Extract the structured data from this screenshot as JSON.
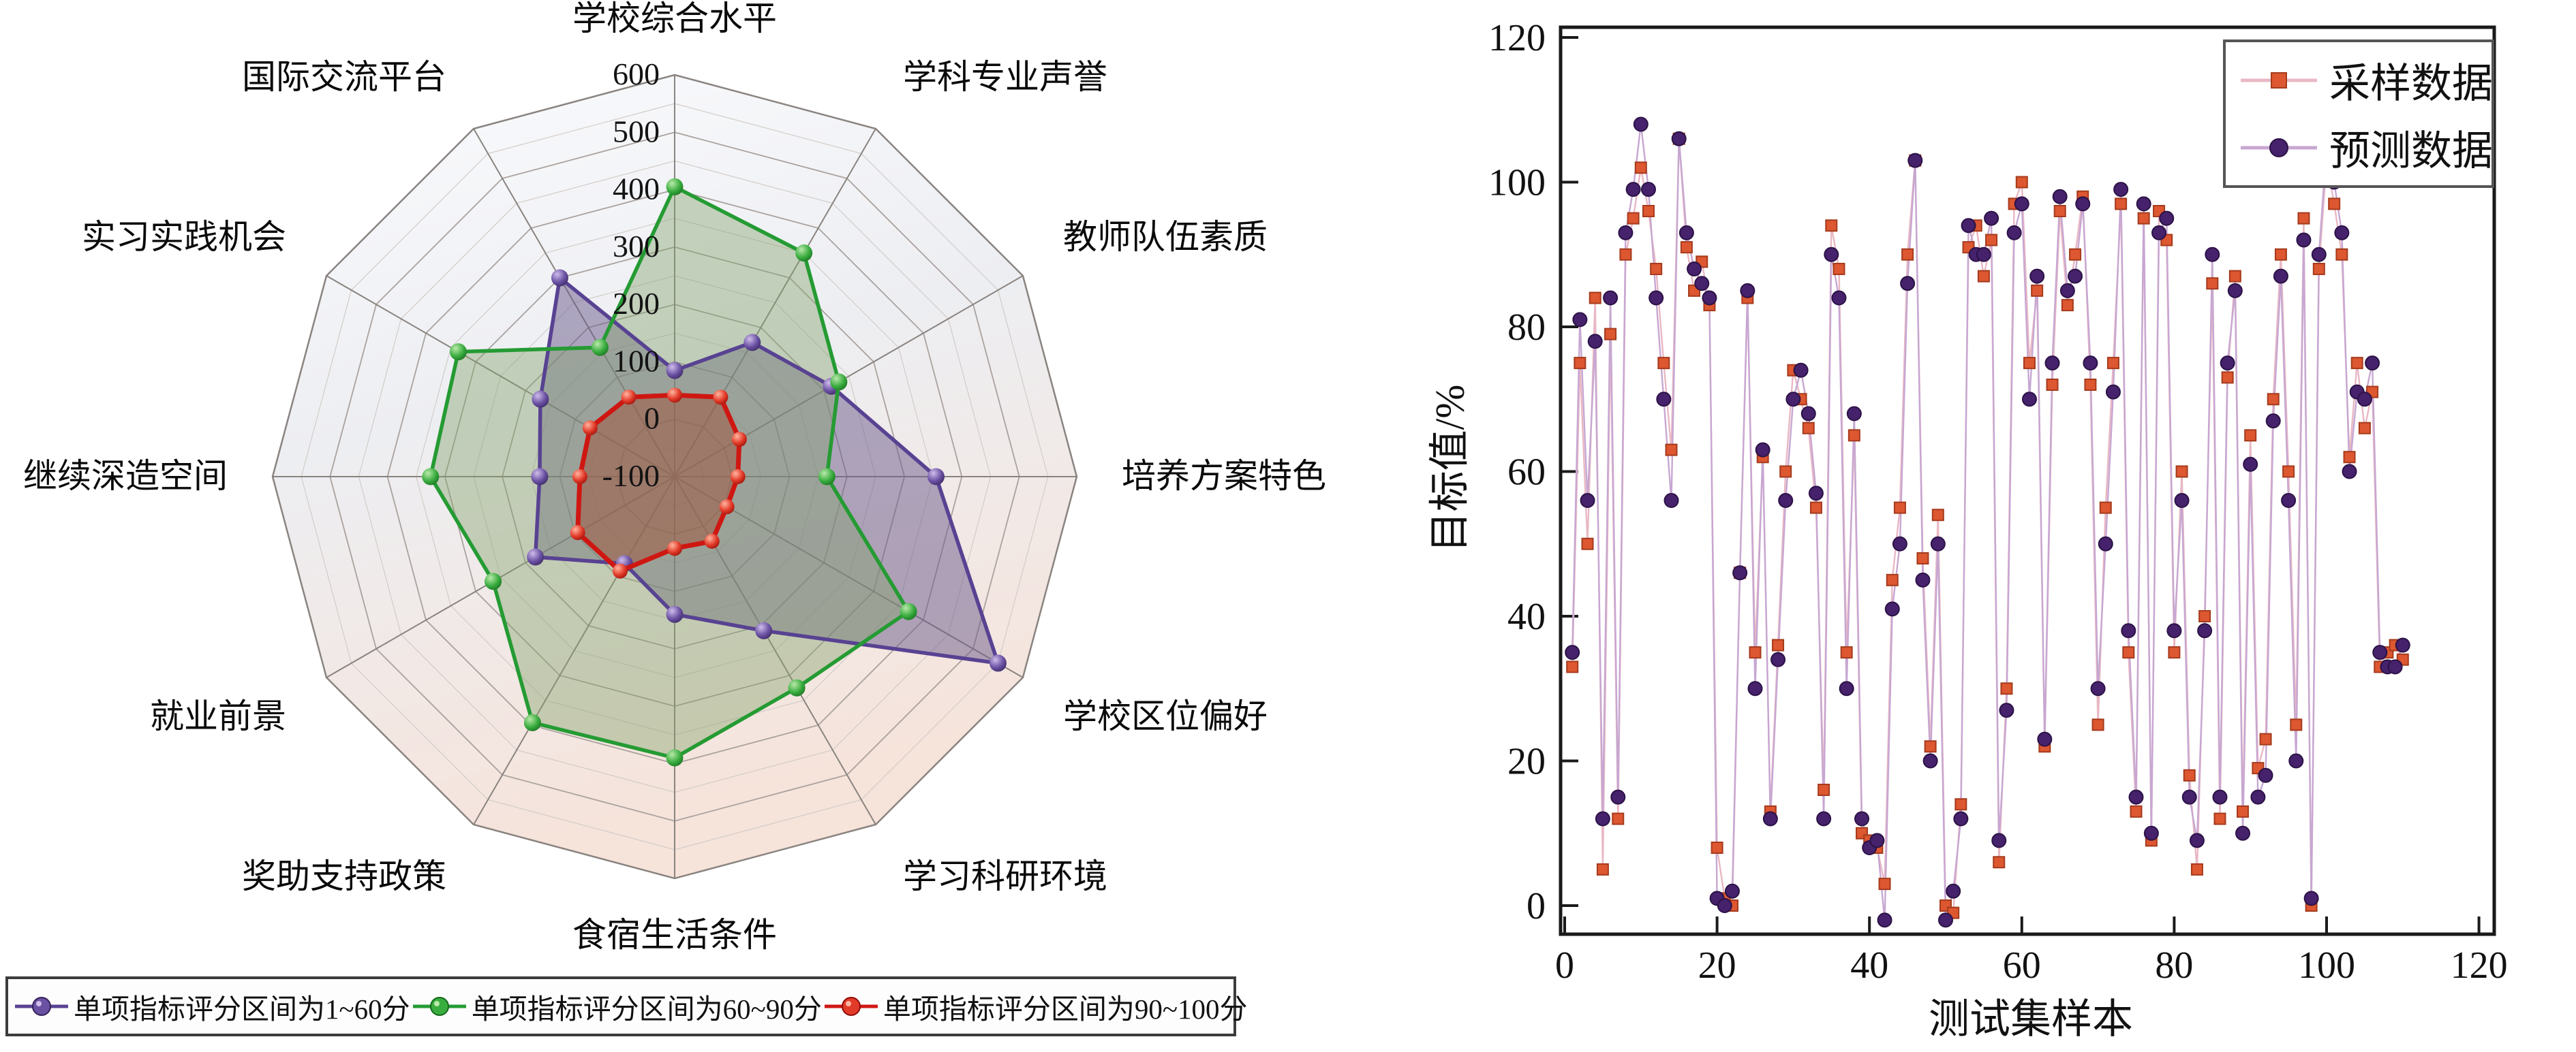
{
  "page": {
    "background": "#ffffff"
  },
  "chart_data": [
    {
      "type": "radar",
      "title": "",
      "categories": [
        "学校综合水平",
        "学科专业声誉",
        "教师队伍素质",
        "培养方案特色",
        "学校区位偏好",
        "学习科研环境",
        "食宿生活条件",
        "奖助支持政策",
        "就业前景",
        "继续深造空间",
        "实习实践机会",
        "国际交流平台"
      ],
      "angles_deg": [
        90,
        60,
        30,
        0,
        -30,
        -60,
        -90,
        -120,
        -150,
        180,
        150,
        120
      ],
      "radial_axis": {
        "min": -100,
        "max": 600,
        "major_step": 100,
        "minor_step": 50,
        "tick_labels": [
          "600",
          "500",
          "400",
          "300",
          "200",
          "100",
          "0",
          "-100"
        ]
      },
      "series": [
        {
          "name": "单项指标评分区间为1~60分",
          "line_color": "#584292",
          "fill_color": "rgba(106,90,138,0.50)",
          "marker_gradient": [
            "#cfbdea",
            "#6a51a3",
            "#352259"
          ],
          "values": [
            85,
            170,
            215,
            355,
            550,
            210,
            140,
            75,
            180,
            135,
            170,
            300
          ]
        },
        {
          "name": "单项指标评分区间为60~90分",
          "line_color": "#259b33",
          "fill_color": "rgba(130,163,108,0.42)",
          "marker_gradient": [
            "#b9e9aa",
            "#3aad3f",
            "#14691c"
          ],
          "values": [
            405,
            350,
            230,
            165,
            370,
            325,
            390,
            395,
            265,
            325,
            335,
            160
          ]
        },
        {
          "name": "单项指标评分区间为90~100分",
          "line_color": "#cf1712",
          "fill_color": "rgba(158,88,66,0.55)",
          "marker_gradient": [
            "#ffb4a0",
            "#e23a28",
            "#8e0c07"
          ],
          "values": [
            42,
            60,
            30,
            10,
            5,
            30,
            25,
            90,
            95,
            65,
            70,
            60
          ]
        }
      ],
      "background_gradient": [
        "#fafbfd",
        "#edeef2",
        "#f6e3da"
      ],
      "grid_color": "#aaa29e",
      "minor_grid_color": "#d2ccc8",
      "spoke_color": "#8a8480"
    },
    {
      "type": "line",
      "xlabel": "测试集样本",
      "ylabel": "目标值/%",
      "x_ticks": [
        "0",
        "20",
        "40",
        "60",
        "80",
        "100",
        "120"
      ],
      "y_ticks": [
        "0",
        "20",
        "40",
        "60",
        "80",
        "100",
        "120"
      ],
      "xlim": [
        0,
        120
      ],
      "ylim": [
        0,
        120
      ],
      "x_note": "sample index 1..110",
      "series": [
        {
          "name": "采样数据",
          "marker": "square",
          "marker_color": "#dd5730",
          "marker_edge": "#a53b1d",
          "line_color": "#e9b8c4",
          "values": [
            33,
            75,
            50,
            84,
            5,
            79,
            12,
            90,
            95,
            102,
            96,
            88,
            75,
            63,
            106,
            91,
            85,
            89,
            83,
            8,
            1,
            0,
            46,
            84,
            35,
            62,
            13,
            36,
            60,
            74,
            70,
            66,
            55,
            16,
            94,
            88,
            35,
            65,
            10,
            9,
            8,
            3,
            45,
            55,
            90,
            103,
            48,
            22,
            54,
            0,
            -1,
            14,
            91,
            94,
            87,
            92,
            6,
            30,
            97,
            100,
            75,
            85,
            22,
            72,
            96,
            83,
            90,
            98,
            72,
            25,
            55,
            75,
            97,
            35,
            13,
            95,
            9,
            96,
            92,
            35,
            60,
            18,
            5,
            40,
            86,
            12,
            73,
            87,
            13,
            65,
            19,
            23,
            70,
            90,
            60,
            25,
            95,
            0,
            88,
            103,
            97,
            90,
            62,
            75,
            66,
            71,
            33,
            35,
            36,
            34
          ]
        },
        {
          "name": "预测数据",
          "marker": "circle",
          "marker_color": "#45226b",
          "marker_edge": "#2c1247",
          "line_color": "#c7a7d2",
          "values": [
            35,
            81,
            56,
            78,
            12,
            84,
            15,
            93,
            99,
            108,
            99,
            84,
            70,
            56,
            106,
            93,
            88,
            86,
            84,
            1,
            0,
            2,
            46,
            85,
            30,
            63,
            12,
            34,
            56,
            70,
            74,
            68,
            57,
            12,
            90,
            84,
            30,
            68,
            12,
            8,
            9,
            -2,
            41,
            50,
            86,
            103,
            45,
            20,
            50,
            -2,
            2,
            12,
            94,
            90,
            90,
            95,
            9,
            27,
            93,
            97,
            70,
            87,
            23,
            75,
            98,
            85,
            87,
            97,
            75,
            30,
            50,
            71,
            99,
            38,
            15,
            97,
            10,
            93,
            95,
            38,
            56,
            15,
            9,
            38,
            90,
            15,
            75,
            85,
            10,
            61,
            15,
            18,
            67,
            87,
            56,
            20,
            92,
            1,
            90,
            105,
            100,
            93,
            60,
            71,
            70,
            75,
            35,
            33,
            33,
            36
          ]
        }
      ]
    }
  ]
}
